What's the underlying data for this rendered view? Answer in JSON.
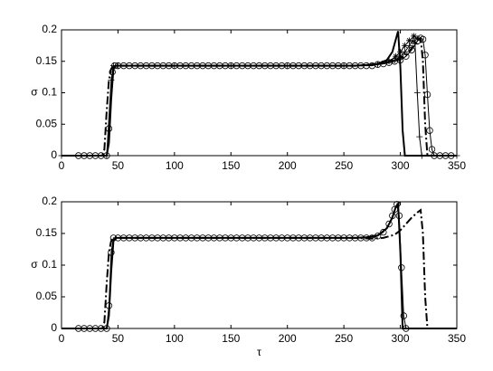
{
  "chart_data": [
    {
      "type": "line",
      "ylabel": "σ",
      "xlim": [
        0,
        350
      ],
      "ylim": [
        0,
        0.2
      ],
      "xticks": [
        0,
        50,
        100,
        150,
        200,
        250,
        300,
        350
      ],
      "yticks": [
        0,
        0.05,
        0.1,
        0.15,
        0.2
      ],
      "series": [
        {
          "color": "#000000",
          "width": 2,
          "dash": "solid",
          "marker": "none",
          "x": [
            0,
            40,
            42,
            44,
            46,
            48,
            100,
            200,
            260,
            270,
            280,
            288,
            293,
            296,
            298,
            300,
            302,
            304,
            350
          ],
          "values": [
            0,
            0,
            0.02,
            0.09,
            0.138,
            0.143,
            0.143,
            0.143,
            0.143,
            0.144,
            0.146,
            0.152,
            0.165,
            0.185,
            0.198,
            0.14,
            0.04,
            0,
            0
          ]
        },
        {
          "color": "#000000",
          "width": 2,
          "dash": "dashdot",
          "marker": "none",
          "x": [
            0,
            36,
            38,
            40,
            42,
            44,
            46,
            48,
            100,
            200,
            260,
            280,
            295,
            305,
            312,
            316,
            318,
            320,
            322,
            324,
            350
          ],
          "values": [
            0,
            0,
            0.01,
            0.07,
            0.12,
            0.138,
            0.143,
            0.143,
            0.143,
            0.143,
            0.143,
            0.145,
            0.15,
            0.16,
            0.175,
            0.185,
            0.187,
            0.15,
            0.05,
            0,
            0
          ]
        },
        {
          "color": "#000000",
          "width": 1,
          "dash": "solid",
          "marker": "+",
          "x": [
            0,
            40,
            44,
            46,
            50,
            100,
            150,
            200,
            250,
            280,
            295,
            300,
            304,
            308,
            311,
            313,
            315,
            317,
            319,
            350
          ],
          "values": [
            0,
            0,
            0.12,
            0.143,
            0.143,
            0.143,
            0.143,
            0.143,
            0.143,
            0.145,
            0.152,
            0.158,
            0.165,
            0.175,
            0.183,
            0.178,
            0.1,
            0.03,
            0,
            0
          ]
        },
        {
          "color": "#000000",
          "width": 1,
          "dash": "solid",
          "marker": "*",
          "x": [
            290,
            296,
            300,
            304,
            308,
            312,
            315
          ],
          "values": [
            0.15,
            0.158,
            0.165,
            0.175,
            0.183,
            0.19,
            0.186
          ]
        },
        {
          "color": "#000000",
          "width": 1,
          "dash": "solid",
          "marker": "o",
          "x": [
            15,
            20,
            25,
            30,
            35,
            40,
            42,
            45,
            47,
            50,
            55,
            60,
            65,
            70,
            75,
            80,
            85,
            90,
            95,
            100,
            105,
            110,
            115,
            120,
            125,
            130,
            135,
            140,
            145,
            150,
            155,
            160,
            165,
            170,
            175,
            180,
            185,
            190,
            195,
            200,
            205,
            210,
            215,
            220,
            225,
            230,
            235,
            240,
            245,
            250,
            255,
            260,
            265,
            270,
            275,
            280,
            285,
            290,
            295,
            300,
            305,
            310,
            315,
            318,
            320,
            322,
            324,
            326,
            328,
            330,
            335,
            340,
            345
          ],
          "values": [
            0,
            0,
            0,
            0,
            0,
            0,
            0.043,
            0.133,
            0.143,
            0.143,
            0.143,
            0.143,
            0.143,
            0.143,
            0.143,
            0.143,
            0.143,
            0.143,
            0.143,
            0.143,
            0.143,
            0.143,
            0.143,
            0.143,
            0.143,
            0.143,
            0.143,
            0.143,
            0.143,
            0.143,
            0.143,
            0.143,
            0.143,
            0.143,
            0.143,
            0.143,
            0.143,
            0.143,
            0.143,
            0.143,
            0.143,
            0.143,
            0.143,
            0.143,
            0.143,
            0.143,
            0.143,
            0.143,
            0.143,
            0.143,
            0.143,
            0.143,
            0.143,
            0.143,
            0.143,
            0.145,
            0.146,
            0.148,
            0.15,
            0.152,
            0.158,
            0.168,
            0.182,
            0.187,
            0.185,
            0.16,
            0.097,
            0.04,
            0.01,
            0,
            0,
            0,
            0
          ]
        }
      ]
    },
    {
      "type": "line",
      "ylabel": "σ",
      "xlabel": "τ",
      "xlim": [
        0,
        350
      ],
      "ylim": [
        0,
        0.2
      ],
      "xticks": [
        0,
        50,
        100,
        150,
        200,
        250,
        300,
        350
      ],
      "yticks": [
        0,
        0.05,
        0.1,
        0.15,
        0.2
      ],
      "series": [
        {
          "color": "#000000",
          "width": 2,
          "dash": "solid",
          "marker": "none",
          "x": [
            0,
            40,
            42,
            44,
            46,
            48,
            100,
            200,
            260,
            270,
            280,
            288,
            293,
            296,
            298,
            300,
            302,
            350
          ],
          "values": [
            0,
            0,
            0.02,
            0.09,
            0.138,
            0.143,
            0.143,
            0.143,
            0.143,
            0.144,
            0.147,
            0.158,
            0.175,
            0.192,
            0.197,
            0.12,
            0,
            0
          ]
        },
        {
          "color": "#000000",
          "width": 2,
          "dash": "dashdot",
          "marker": "none",
          "x": [
            0,
            36,
            38,
            40,
            42,
            44,
            46,
            100,
            200,
            260,
            275,
            285,
            295,
            300,
            305,
            310,
            315,
            318,
            320,
            322,
            324,
            350
          ],
          "values": [
            0,
            0,
            0.01,
            0.07,
            0.12,
            0.138,
            0.143,
            0.143,
            0.143,
            0.143,
            0.142,
            0.143,
            0.148,
            0.155,
            0.165,
            0.175,
            0.183,
            0.187,
            0.15,
            0.05,
            0,
            0
          ]
        },
        {
          "color": "#000000",
          "width": 1,
          "dash": "solid",
          "marker": "o",
          "x": [
            15,
            20,
            25,
            30,
            35,
            40,
            42,
            44,
            46,
            50,
            55,
            60,
            65,
            70,
            75,
            80,
            85,
            90,
            95,
            100,
            105,
            110,
            115,
            120,
            125,
            130,
            135,
            140,
            145,
            150,
            155,
            160,
            165,
            170,
            175,
            180,
            185,
            190,
            195,
            200,
            205,
            210,
            215,
            220,
            225,
            230,
            235,
            240,
            245,
            250,
            255,
            260,
            265,
            270,
            275,
            280,
            285,
            290,
            293,
            295,
            297,
            299,
            301,
            303,
            305
          ],
          "values": [
            0,
            0,
            0,
            0,
            0,
            0,
            0.036,
            0.12,
            0.143,
            0.143,
            0.143,
            0.143,
            0.143,
            0.143,
            0.143,
            0.143,
            0.143,
            0.143,
            0.143,
            0.143,
            0.143,
            0.143,
            0.143,
            0.143,
            0.143,
            0.143,
            0.143,
            0.143,
            0.143,
            0.143,
            0.143,
            0.143,
            0.143,
            0.143,
            0.143,
            0.143,
            0.143,
            0.143,
            0.143,
            0.143,
            0.143,
            0.143,
            0.143,
            0.143,
            0.143,
            0.143,
            0.143,
            0.143,
            0.143,
            0.143,
            0.143,
            0.143,
            0.143,
            0.143,
            0.143,
            0.146,
            0.152,
            0.165,
            0.178,
            0.188,
            0.196,
            0.178,
            0.096,
            0.02,
            0
          ]
        }
      ]
    }
  ]
}
